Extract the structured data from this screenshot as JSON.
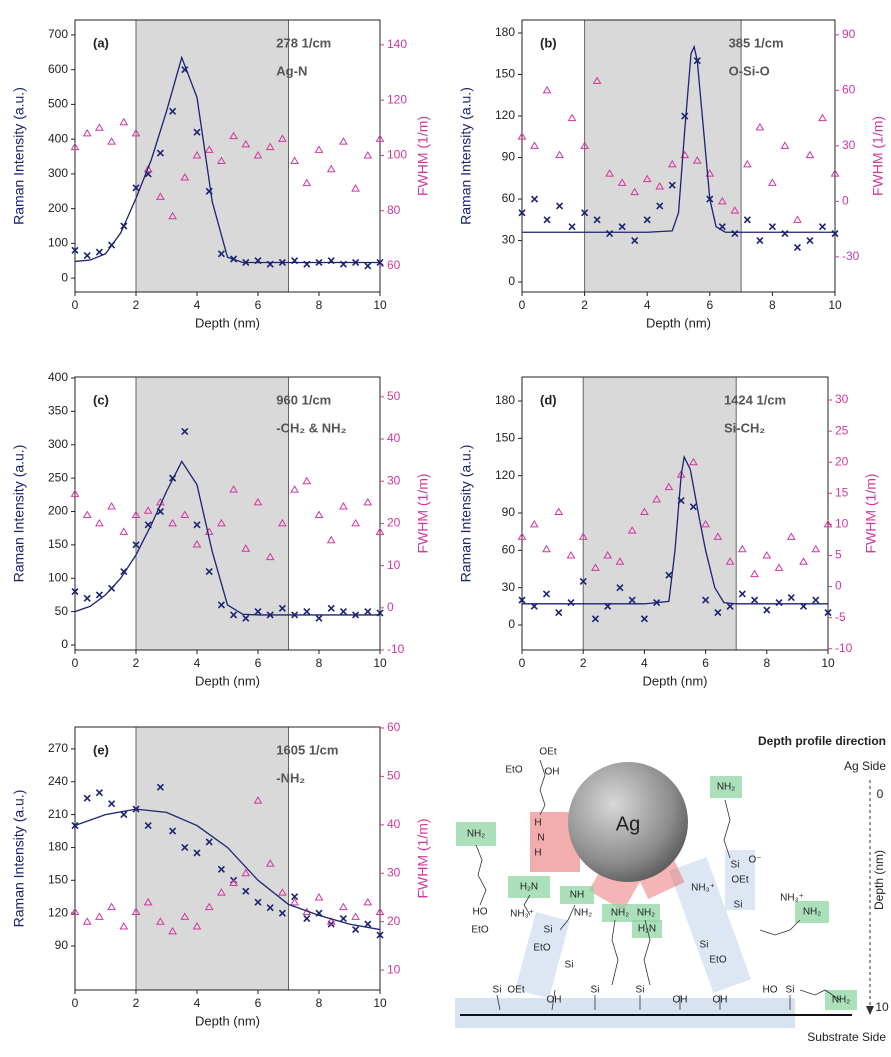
{
  "chart_data": [
    {
      "type": "scatter",
      "panel": "(a)",
      "annotation": [
        "278 1/cm",
        "Ag-N"
      ],
      "xlabel": "Depth (nm)",
      "ylabel": "Raman Intensity (a.u.)",
      "y2label": "FWHM (1/m)",
      "xlim": [
        0,
        10
      ],
      "xticks": [
        0,
        2,
        4,
        6,
        8,
        10
      ],
      "ylim": [
        -40,
        743
      ],
      "yticks": [
        0,
        100,
        200,
        300,
        400,
        500,
        600,
        700
      ],
      "y2lim": [
        50.6,
        149
      ],
      "y2ticks": [
        60,
        80,
        100,
        120,
        140
      ],
      "highlight": [
        2,
        7
      ],
      "x": [
        0,
        0.4,
        0.8,
        1.2,
        1.6,
        2,
        2.4,
        2.8,
        3.2,
        3.6,
        4,
        4.4,
        4.8,
        5.2,
        5.6,
        6,
        6.4,
        6.8,
        7.2,
        7.6,
        8,
        8.4,
        8.8,
        9.2,
        9.6,
        10
      ],
      "series": [
        {
          "marker": "x",
          "color": "#1c2372",
          "values": [
            80,
            65,
            75,
            95,
            150,
            260,
            300,
            360,
            480,
            600,
            420,
            250,
            70,
            55,
            45,
            50,
            40,
            45,
            50,
            40,
            45,
            50,
            40,
            45,
            35,
            45
          ]
        },
        {
          "marker": "triangle",
          "axis": "y2",
          "color": "#d0399a",
          "values": [
            103,
            108,
            110,
            105,
            112,
            108,
            95,
            85,
            78,
            92,
            100,
            102,
            98,
            107,
            104,
            100,
            103,
            106,
            98,
            90,
            102,
            95,
            105,
            88,
            100,
            106
          ]
        },
        {
          "marker": "line",
          "color": "#1c2372",
          "x": [
            0,
            0.5,
            1,
            1.5,
            2,
            2.5,
            3,
            3.5,
            4,
            4.5,
            5,
            5.5,
            6,
            8,
            10
          ],
          "values": [
            48,
            52,
            70,
            130,
            230,
            340,
            480,
            635,
            520,
            220,
            60,
            45,
            45,
            45,
            45
          ]
        }
      ]
    },
    {
      "type": "scatter",
      "panel": "(b)",
      "annotation": [
        "385 1/cm",
        "O-Si-O"
      ],
      "xlabel": "Depth (nm)",
      "ylabel": "Raman Intensity (a.u.)",
      "y2label": "FWHM (1/m)",
      "xlim": [
        0,
        10
      ],
      "xticks": [
        0,
        2,
        4,
        6,
        8,
        10
      ],
      "ylim": [
        -7.2,
        189.4
      ],
      "yticks": [
        0,
        30,
        60,
        90,
        120,
        150,
        180
      ],
      "y2lim": [
        -49,
        98
      ],
      "y2ticks": [
        -30,
        0,
        30,
        60,
        90
      ],
      "highlight": [
        2,
        7
      ],
      "x": [
        0,
        0.4,
        0.8,
        1.2,
        1.6,
        2,
        2.4,
        2.8,
        3.2,
        3.6,
        4,
        4.4,
        4.8,
        5.2,
        5.6,
        6,
        6.4,
        6.8,
        7.2,
        7.6,
        8,
        8.4,
        8.8,
        9.2,
        9.6,
        10
      ],
      "series": [
        {
          "marker": "x",
          "color": "#1c2372",
          "values": [
            50,
            60,
            45,
            55,
            40,
            50,
            45,
            35,
            40,
            30,
            45,
            55,
            70,
            120,
            160,
            60,
            40,
            35,
            45,
            30,
            40,
            35,
            25,
            30,
            40,
            35
          ]
        },
        {
          "marker": "triangle",
          "axis": "y2",
          "color": "#d0399a",
          "values": [
            35,
            30,
            60,
            25,
            45,
            30,
            65,
            15,
            10,
            5,
            12,
            8,
            20,
            25,
            22,
            15,
            0,
            -5,
            20,
            40,
            10,
            30,
            -10,
            25,
            45,
            15
          ]
        },
        {
          "marker": "line",
          "color": "#1c2372",
          "x": [
            0,
            2,
            4,
            4.8,
            5,
            5.2,
            5.4,
            5.5,
            5.6,
            5.8,
            6,
            6.2,
            6.5,
            8,
            10
          ],
          "values": [
            36,
            36,
            36,
            37,
            50,
            110,
            165,
            170,
            160,
            110,
            60,
            40,
            36,
            36,
            36
          ]
        }
      ]
    },
    {
      "type": "scatter",
      "panel": "(c)",
      "annotation": [
        "960 1/cm",
        "-CH₂ & NH₂"
      ],
      "xlabel": "Depth (nm)",
      "ylabel": "Raman Intensity (a.u.)",
      "y2label": "FWHM (1/m)",
      "xlim": [
        0,
        10
      ],
      "xticks": [
        0,
        2,
        4,
        6,
        8,
        10
      ],
      "ylim": [
        -7.5,
        401.5
      ],
      "yticks": [
        0,
        50,
        100,
        150,
        200,
        250,
        300,
        350,
        400
      ],
      "y2lim": [
        -10,
        54.7
      ],
      "y2ticks": [
        -10,
        0,
        10,
        20,
        30,
        40,
        50
      ],
      "highlight": [
        2,
        7
      ],
      "x": [
        0,
        0.4,
        0.8,
        1.2,
        1.6,
        2,
        2.4,
        2.8,
        3.2,
        3.6,
        4,
        4.4,
        4.8,
        5.2,
        5.6,
        6,
        6.4,
        6.8,
        7.2,
        7.6,
        8,
        8.4,
        8.8,
        9.2,
        9.6,
        10
      ],
      "series": [
        {
          "marker": "x",
          "color": "#1c2372",
          "values": [
            80,
            70,
            75,
            85,
            110,
            150,
            180,
            200,
            250,
            320,
            180,
            110,
            60,
            45,
            40,
            50,
            45,
            55,
            45,
            50,
            40,
            55,
            50,
            45,
            50,
            48
          ]
        },
        {
          "marker": "triangle",
          "axis": "y2",
          "color": "#d0399a",
          "values": [
            27,
            22,
            20,
            24,
            18,
            22,
            23,
            25,
            20,
            22,
            15,
            18,
            20,
            28,
            14,
            25,
            12,
            20,
            28,
            30,
            22,
            16,
            24,
            20,
            25,
            18
          ]
        },
        {
          "marker": "line",
          "color": "#1c2372",
          "x": [
            0,
            0.5,
            1,
            1.5,
            2,
            2.5,
            3,
            3.5,
            4,
            4.5,
            5,
            5.5,
            6,
            8,
            10
          ],
          "values": [
            50,
            58,
            75,
            100,
            135,
            180,
            230,
            275,
            240,
            140,
            60,
            46,
            45,
            45,
            45
          ]
        }
      ]
    },
    {
      "type": "scatter",
      "panel": "(d)",
      "annotation": [
        "1424 1/cm",
        "Si-CH₂"
      ],
      "xlabel": "Depth (nm)",
      "ylabel": "Raman Intensity (a.u.)",
      "y2label": "FWHM (1/m)",
      "xlim": [
        0,
        10
      ],
      "xticks": [
        0,
        2,
        4,
        6,
        8,
        10
      ],
      "ylim": [
        -20.1,
        199.3
      ],
      "yticks": [
        0,
        30,
        60,
        90,
        120,
        150,
        180
      ],
      "y2lim": [
        -10.2,
        33.7
      ],
      "y2ticks": [
        -10,
        -5,
        0,
        5,
        10,
        15,
        20,
        25,
        30
      ],
      "highlight": [
        2,
        7
      ],
      "x": [
        0,
        0.4,
        0.8,
        1.2,
        1.6,
        2,
        2.4,
        2.8,
        3.2,
        3.6,
        4,
        4.4,
        4.8,
        5.2,
        5.6,
        6,
        6.4,
        6.8,
        7.2,
        7.6,
        8,
        8.4,
        8.8,
        9.2,
        9.6,
        10
      ],
      "series": [
        {
          "marker": "x",
          "color": "#1c2372",
          "values": [
            20,
            15,
            25,
            10,
            18,
            35,
            5,
            15,
            30,
            20,
            5,
            18,
            40,
            100,
            95,
            20,
            10,
            15,
            25,
            20,
            12,
            18,
            22,
            15,
            20,
            10
          ]
        },
        {
          "marker": "triangle",
          "axis": "y2",
          "color": "#d0399a",
          "values": [
            8,
            10,
            6,
            12,
            5,
            8,
            3,
            5,
            4,
            9,
            12,
            14,
            16,
            18,
            20,
            10,
            8,
            4,
            6,
            2,
            5,
            3,
            8,
            4,
            6,
            10
          ]
        },
        {
          "marker": "line",
          "color": "#1c2372",
          "x": [
            0,
            2,
            4,
            4.8,
            5,
            5.2,
            5.3,
            5.5,
            5.8,
            6,
            6.3,
            6.6,
            7,
            10
          ],
          "values": [
            17,
            17,
            17,
            19,
            60,
            120,
            135,
            125,
            85,
            60,
            30,
            18,
            17,
            17
          ]
        }
      ]
    },
    {
      "type": "scatter",
      "panel": "(e)",
      "annotation": [
        "1605 1/cm",
        "-NH₂"
      ],
      "xlabel": "Depth (nm)",
      "ylabel": "Raman Intensity (a.u.)",
      "y2label": "FWHM (1/m)",
      "xlim": [
        0,
        10
      ],
      "xticks": [
        0,
        2,
        4,
        6,
        8,
        10
      ],
      "ylim": [
        49.8,
        290
      ],
      "yticks": [
        90,
        120,
        150,
        180,
        210,
        240,
        270
      ],
      "y2lim": [
        5.9,
        60.2
      ],
      "y2ticks": [
        10,
        20,
        30,
        40,
        50,
        60
      ],
      "highlight": [
        2,
        7
      ],
      "x": [
        0,
        0.4,
        0.8,
        1.2,
        1.6,
        2,
        2.4,
        2.8,
        3.2,
        3.6,
        4,
        4.4,
        4.8,
        5.2,
        5.6,
        6,
        6.4,
        6.8,
        7.2,
        7.6,
        8,
        8.4,
        8.8,
        9.2,
        9.6,
        10
      ],
      "series": [
        {
          "marker": "x",
          "color": "#1c2372",
          "values": [
            200,
            225,
            230,
            220,
            210,
            215,
            200,
            235,
            195,
            180,
            175,
            185,
            160,
            150,
            140,
            130,
            125,
            120,
            135,
            115,
            120,
            110,
            115,
            105,
            110,
            100
          ]
        },
        {
          "marker": "triangle",
          "axis": "y2",
          "color": "#d0399a",
          "values": [
            22,
            20,
            21,
            23,
            19,
            22,
            24,
            20,
            18,
            21,
            19,
            23,
            26,
            28,
            30,
            45,
            32,
            26,
            24,
            22,
            25,
            20,
            23,
            21,
            24,
            22
          ]
        },
        {
          "marker": "line",
          "color": "#1c2372",
          "x": [
            0,
            1,
            2,
            3,
            4,
            5,
            6,
            7,
            8,
            9,
            10
          ],
          "values": [
            200,
            210,
            215,
            212,
            200,
            180,
            150,
            128,
            118,
            110,
            105
          ]
        }
      ]
    }
  ],
  "diagram": {
    "title": "Depth profile direction",
    "top_side": "Ag Side",
    "bottom_side": "Substrate Side",
    "particle": "Ag",
    "axis_label": "Depth (nm)",
    "axis_start": "0",
    "axis_end": "10",
    "labels": [
      "OEt",
      "EtO",
      "OH",
      "H",
      "N",
      "H",
      "H₂N",
      "NH₂",
      "HO",
      "EtO",
      "NH₃⁺",
      "NH",
      "Si",
      "EtO",
      "NH₂",
      "NH₂",
      "NH₂",
      "NH₃⁺",
      "H₂N",
      "Si",
      "NH₂",
      "Si",
      "O⁻",
      "NH₃⁺",
      "OEt",
      "Si",
      "NH₂",
      "Si",
      "EtO",
      "OEt",
      "Si",
      "OH",
      "Si",
      "Si",
      "HO",
      "Si",
      "NH₂",
      "OH",
      "OH"
    ]
  }
}
